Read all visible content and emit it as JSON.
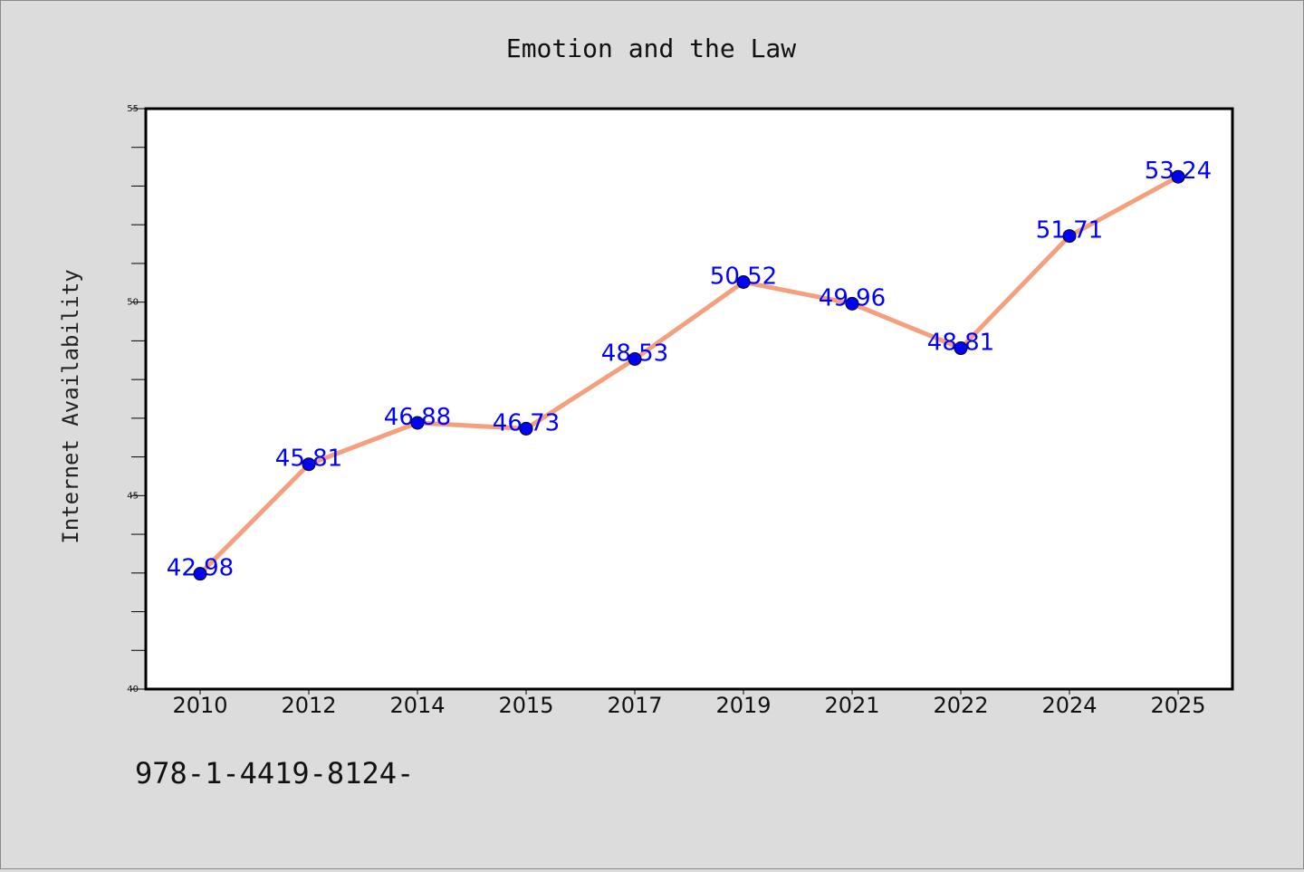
{
  "chart_data": {
    "type": "line",
    "title": "Emotion and the Law",
    "ylabel": "Internet Availability",
    "xlabel": "",
    "categories": [
      "2010",
      "2012",
      "2014",
      "2015",
      "2017",
      "2019",
      "2021",
      "2022",
      "2024",
      "2025"
    ],
    "values": [
      42.98,
      45.81,
      46.88,
      46.73,
      48.53,
      50.52,
      49.96,
      48.81,
      51.71,
      53.24
    ],
    "data_labels": [
      "42.98",
      "45.81",
      "46.88",
      "46.73",
      "48.53",
      "50.52",
      "49.96",
      "48.81",
      "51.71",
      "53.24"
    ],
    "ylim": [
      40,
      55
    ],
    "yticks": [
      40,
      45,
      50,
      55
    ],
    "grid": false,
    "line_color": "#f4a07e",
    "marker_color": "#0000ff",
    "label_color": "#0000ff"
  },
  "footer": {
    "isbn": "978-1-4419-8124-"
  }
}
